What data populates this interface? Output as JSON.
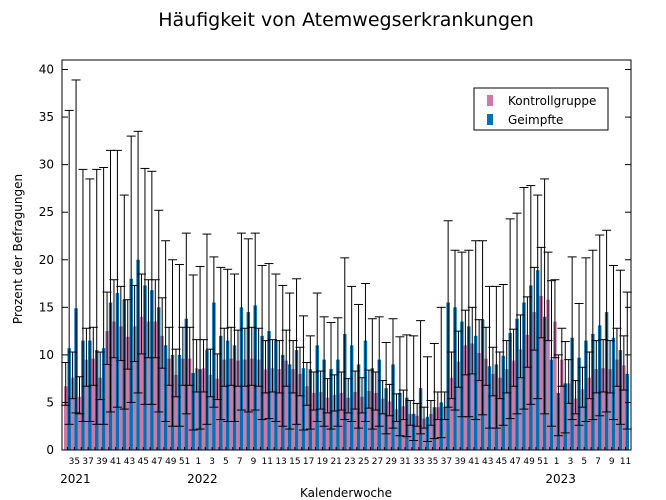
{
  "chart_data": {
    "type": "bar",
    "title": "Häufigkeit von Atemwegserkrankungen",
    "xlabel": "Kalenderwoche",
    "ylabel": "Prozent der Befragungen",
    "ylim": [
      0,
      41
    ],
    "yticks": [
      0,
      5,
      10,
      15,
      20,
      25,
      30,
      35,
      40
    ],
    "legend_position": "top-right",
    "colors": {
      "Kontrollgruppe": "#cc79a7",
      "Geimpfte": "#0072b2"
    },
    "weeks": [
      34,
      35,
      36,
      37,
      38,
      39,
      40,
      41,
      42,
      43,
      44,
      45,
      46,
      47,
      48,
      49,
      50,
      51,
      52,
      1,
      2,
      3,
      4,
      5,
      6,
      7,
      8,
      9,
      10,
      11,
      12,
      13,
      14,
      15,
      16,
      17,
      18,
      19,
      20,
      21,
      22,
      23,
      24,
      25,
      26,
      27,
      28,
      29,
      30,
      31,
      32,
      33,
      34,
      35,
      36,
      37,
      38,
      39,
      40,
      41,
      42,
      43,
      44,
      45,
      46,
      47,
      48,
      49,
      50,
      51,
      52,
      1,
      2,
      3,
      4,
      5,
      6,
      7,
      8,
      9,
      10,
      11
    ],
    "xtick_labels": [
      "35",
      "37",
      "39",
      "41",
      "43",
      "45",
      "47",
      "49",
      "51",
      "1",
      "3",
      "5",
      "7",
      "9",
      "11",
      "13",
      "15",
      "17",
      "19",
      "21",
      "23",
      "25",
      "27",
      "29",
      "31",
      "33",
      "35",
      "37",
      "39",
      "41",
      "43",
      "45",
      "47",
      "49",
      "51",
      "1",
      "3",
      "5",
      "7",
      "9",
      "11"
    ],
    "year_labels": [
      "2021",
      "2022",
      "2023"
    ],
    "series": [
      {
        "name": "Kontrollgruppe",
        "values": [
          6.7,
          7.6,
          5.6,
          9.5,
          9.6,
          7.6,
          12.5,
          13.5,
          13.0,
          11.9,
          13.0,
          14.0,
          13.5,
          13.5,
          12.0,
          9.6,
          7.9,
          9.6,
          9.6,
          8.6,
          8.6,
          7.9,
          7.5,
          9.5,
          9.6,
          9.4,
          9.5,
          9.6,
          9.5,
          8.5,
          8.6,
          8.5,
          9.4,
          8.5,
          8.0,
          6.7,
          6.0,
          6.1,
          5.5,
          5.8,
          6.0,
          5.5,
          6.1,
          5.6,
          6.2,
          6.0,
          5.4,
          5.1,
          4.3,
          4.6,
          3.8,
          3.6,
          3.3,
          3.8,
          4.5,
          4.5,
          7.6,
          9.3,
          11.0,
          11.2,
          10.2,
          9.6,
          8.0,
          7.6,
          8.5,
          9.4,
          10.6,
          12.1,
          14.5,
          16.2,
          15.8,
          13.5,
          9.5,
          7.0,
          5.4,
          6.4,
          7.6,
          8.5,
          8.6,
          8.5,
          9.5,
          8.9
        ],
        "err_low": [
          2.0,
          2.2,
          1.8,
          2.8,
          2.8,
          2.3,
          3.5,
          3.8,
          3.6,
          3.4,
          3.7,
          3.9,
          3.8,
          3.8,
          3.4,
          2.8,
          2.3,
          2.8,
          2.8,
          2.5,
          2.5,
          2.3,
          2.2,
          2.8,
          2.8,
          2.7,
          2.8,
          2.8,
          2.8,
          2.5,
          2.5,
          2.5,
          2.7,
          2.5,
          2.3,
          2.0,
          1.8,
          1.8,
          1.6,
          1.7,
          1.8,
          1.6,
          1.8,
          1.7,
          1.8,
          1.8,
          1.6,
          1.5,
          1.3,
          1.4,
          1.2,
          1.1,
          1.0,
          1.2,
          1.3,
          1.3,
          2.2,
          2.7,
          3.1,
          3.2,
          2.9,
          2.8,
          2.3,
          2.2,
          2.5,
          2.7,
          3.0,
          3.4,
          4.0,
          4.4,
          4.3,
          3.8,
          2.8,
          2.1,
          1.6,
          1.9,
          2.2,
          2.5,
          2.5,
          2.5,
          2.8,
          2.6
        ],
        "err_high": [
          2.5,
          2.7,
          2.1,
          3.3,
          3.3,
          2.7,
          4.1,
          4.4,
          4.2,
          3.9,
          4.3,
          4.5,
          4.4,
          4.4,
          4.0,
          3.3,
          2.7,
          3.3,
          3.3,
          3.0,
          3.0,
          2.7,
          2.6,
          3.3,
          3.3,
          3.2,
          3.3,
          3.3,
          3.3,
          3.0,
          3.0,
          3.0,
          3.2,
          3.0,
          2.8,
          2.5,
          2.2,
          2.2,
          2.0,
          2.1,
          2.2,
          2.0,
          2.2,
          2.0,
          2.2,
          2.2,
          1.9,
          1.8,
          1.6,
          1.7,
          1.4,
          1.3,
          1.2,
          1.4,
          1.6,
          1.6,
          2.7,
          3.2,
          3.7,
          3.8,
          3.5,
          3.3,
          2.8,
          2.7,
          3.0,
          3.3,
          3.6,
          4.0,
          4.7,
          5.1,
          5.0,
          4.4,
          3.3,
          2.5,
          1.9,
          2.3,
          2.7,
          3.0,
          3.0,
          3.0,
          3.3,
          3.1
        ]
      },
      {
        "name": "Geimpfte",
        "values": [
          10.7,
          14.9,
          11.5,
          11.5,
          10.5,
          10.7,
          15.5,
          16.5,
          15.8,
          18.0,
          20.0,
          17.3,
          16.8,
          15.0,
          11.0,
          10.0,
          10.0,
          13.8,
          8.1,
          8.5,
          10.5,
          15.5,
          12.0,
          11.5,
          11.0,
          15.0,
          14.5,
          15.2,
          12.0,
          12.5,
          11.5,
          10.0,
          9.0,
          10.5,
          8.6,
          8.5,
          11.0,
          9.5,
          8.5,
          9.5,
          12.2,
          11.0,
          9.0,
          11.5,
          8.6,
          9.5,
          6.5,
          9.0,
          6.0,
          5.5,
          3.8,
          6.5,
          3.5,
          4.5,
          5.0,
          15.5,
          15.0,
          13.5,
          13.0,
          12.0,
          13.7,
          8.8,
          9.0,
          9.9,
          12.3,
          13.8,
          15.5,
          17.3,
          18.9,
          14.0,
          9.5,
          6.0,
          7.0,
          11.8,
          9.7,
          11.5,
          12.2,
          13.1,
          14.5,
          11.8,
          10.5,
          8.0
        ],
        "err_low": [
          8.0,
          11.0,
          8.5,
          8.5,
          7.8,
          8.0,
          11.5,
          12.0,
          11.5,
          13.0,
          14.0,
          12.5,
          12.0,
          11.0,
          8.0,
          7.5,
          7.5,
          10.0,
          6.0,
          6.3,
          7.8,
          11.0,
          8.8,
          8.5,
          8.0,
          10.8,
          10.5,
          11.0,
          8.8,
          9.2,
          8.5,
          7.5,
          6.8,
          7.8,
          6.5,
          6.3,
          8.0,
          7.0,
          6.3,
          7.0,
          9.0,
          8.0,
          6.7,
          8.5,
          6.4,
          7.0,
          4.8,
          6.7,
          4.5,
          4.1,
          2.8,
          4.8,
          2.6,
          3.3,
          3.7,
          11.0,
          10.8,
          10.0,
          9.5,
          8.8,
          10.0,
          6.5,
          6.7,
          7.3,
          9.0,
          10.0,
          11.2,
          12.5,
          13.5,
          10.2,
          7.0,
          4.5,
          5.2,
          8.6,
          7.1,
          8.5,
          9.0,
          9.5,
          10.5,
          8.6,
          7.8,
          5.8
        ],
        "err_high": [
          25.0,
          24.0,
          18.0,
          17.0,
          19.0,
          19.0,
          16.0,
          15.0,
          11.0,
          15.0,
          13.5,
          12.3,
          12.5,
          10.2,
          11.0,
          10.0,
          9.5,
          9.0,
          10.3,
          10.8,
          12.2,
          4.8,
          7.2,
          7.5,
          7.5,
          7.8,
          7.7,
          7.6,
          7.4,
          7.1,
          7.0,
          7.3,
          7.5,
          7.5,
          5.5,
          3.5,
          5.5,
          4.5,
          4.9,
          4.4,
          8.0,
          6.2,
          6.3,
          6.0,
          5.2,
          4.5,
          4.8,
          4.8,
          5.9,
          6.6,
          8.2,
          7.1,
          6.3,
          6.7,
          10.0,
          8.6,
          6.0,
          7.3,
          8.0,
          10.0,
          8.3,
          8.4,
          8.2,
          7.5,
          12.0,
          11.1,
          12.1,
          10.5,
          7.9,
          14.5,
          8.3,
          4.0,
          4.4,
          8.5,
          5.7,
          8.7,
          8.8,
          9.5,
          8.6,
          7.6,
          8.4,
          8.6
        ]
      }
    ]
  }
}
